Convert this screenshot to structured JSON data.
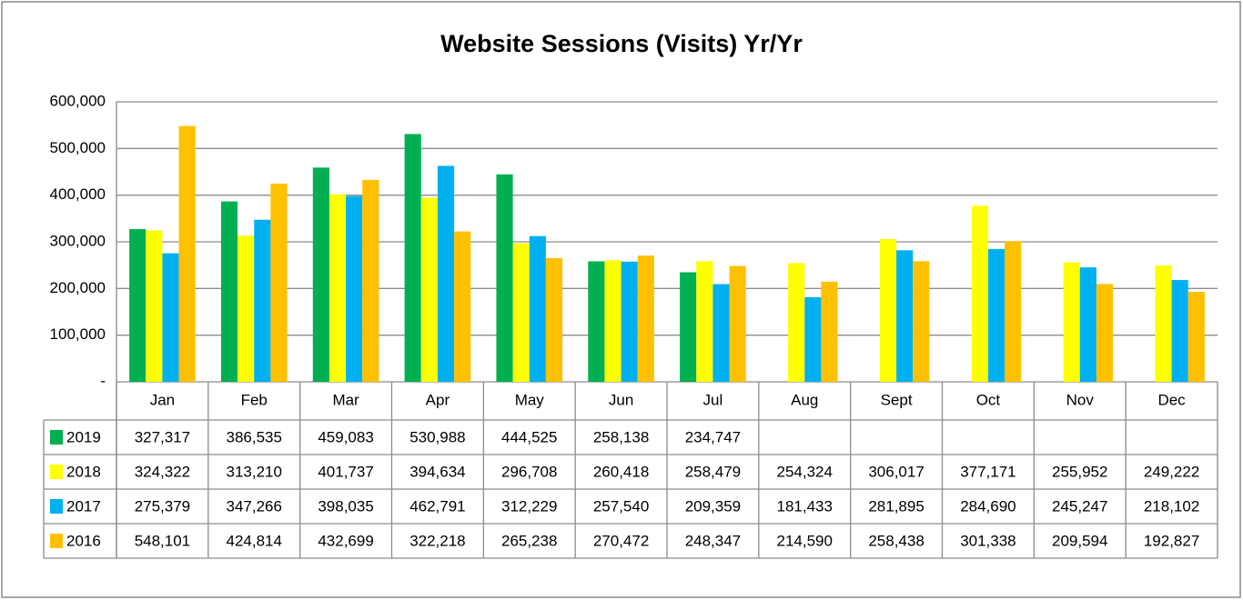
{
  "chart_data": {
    "type": "bar",
    "title": "Website Sessions (Visits) Yr/Yr",
    "categories": [
      "Jan",
      "Feb",
      "Mar",
      "Apr",
      "May",
      "Jun",
      "Jul",
      "Aug",
      "Sept",
      "Oct",
      "Nov",
      "Dec"
    ],
    "series": [
      {
        "name": "2019",
        "color": "#00b050",
        "values": [
          327317,
          386535,
          459083,
          530988,
          444525,
          258138,
          234747,
          null,
          null,
          null,
          null,
          null
        ],
        "value_labels": [
          "327,317",
          "386,535",
          "459,083",
          "530,988",
          "444,525",
          "258,138",
          "234,747",
          null,
          null,
          null,
          null,
          null
        ]
      },
      {
        "name": "2018",
        "color": "#ffff00",
        "values": [
          324322,
          313210,
          401737,
          394634,
          296708,
          260418,
          258479,
          254324,
          306017,
          377171,
          255952,
          249222
        ],
        "value_labels": [
          "324,322",
          "313,210",
          "401,737",
          "394,634",
          "296,708",
          "260,418",
          "258,479",
          "254,324",
          "306,017",
          "377,171",
          "255,952",
          "249,222"
        ]
      },
      {
        "name": "2017",
        "color": "#00b0f0",
        "values": [
          275379,
          347266,
          398035,
          462791,
          312229,
          257540,
          209359,
          181433,
          281895,
          284690,
          245247,
          218102
        ],
        "value_labels": [
          "275,379",
          "347,266",
          "398,035",
          "462,791",
          "312,229",
          "257,540",
          "209,359",
          "181,433",
          "281,895",
          "284,690",
          "245,247",
          "218,102"
        ]
      },
      {
        "name": "2016",
        "color": "#ffc000",
        "values": [
          548101,
          424814,
          432699,
          322218,
          265238,
          270472,
          248347,
          214590,
          258438,
          301338,
          209594,
          192827
        ],
        "value_labels": [
          "548,101",
          "424,814",
          "432,699",
          "322,218",
          "265,238",
          "270,472",
          "248,347",
          "214,590",
          "258,438",
          "301,338",
          "209,594",
          "192,827"
        ]
      }
    ],
    "ylim": [
      0,
      600000
    ],
    "yticks": [
      {
        "value": 0,
        "label": "-"
      },
      {
        "value": 100000,
        "label": "100,000"
      },
      {
        "value": 200000,
        "label": "200,000"
      },
      {
        "value": 300000,
        "label": "300,000"
      },
      {
        "value": 400000,
        "label": "400,000"
      },
      {
        "value": 500000,
        "label": "500,000"
      },
      {
        "value": 600000,
        "label": "600,000"
      }
    ],
    "grid": true
  }
}
